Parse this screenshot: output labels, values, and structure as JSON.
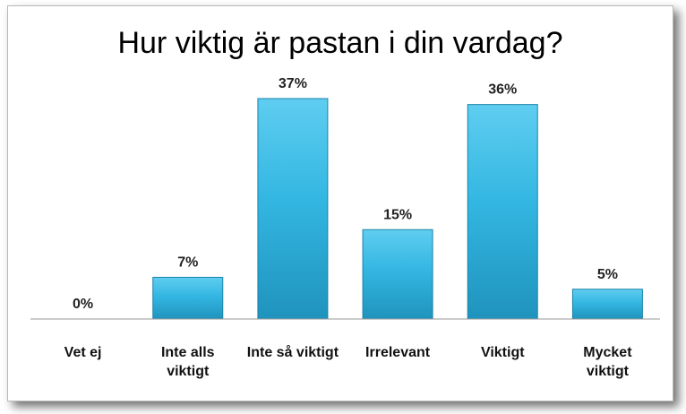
{
  "chart_data": {
    "type": "bar",
    "title": "Hur viktig är pastan i din vardag?",
    "categories": [
      [
        "Vet ej"
      ],
      [
        "Inte alls",
        "viktigt"
      ],
      [
        "Inte så viktigt"
      ],
      [
        "Irrelevant"
      ],
      [
        "Viktigt"
      ],
      [
        "Mycket",
        "viktigt"
      ]
    ],
    "values": [
      0,
      7,
      37,
      15,
      36,
      5
    ],
    "data_labels": [
      "0%",
      "7%",
      "37%",
      "15%",
      "36%",
      "5%"
    ],
    "xlabel": "",
    "ylabel": "",
    "ylim": [
      0,
      40
    ],
    "grid": false,
    "legend": "none",
    "colors": {
      "bar_top": "#5fcdf0",
      "bar_mid": "#33b7e2",
      "bar_bottom": "#1f93bd",
      "bar_edge": "#1b83a8",
      "axis": "#9a9a9a"
    }
  }
}
